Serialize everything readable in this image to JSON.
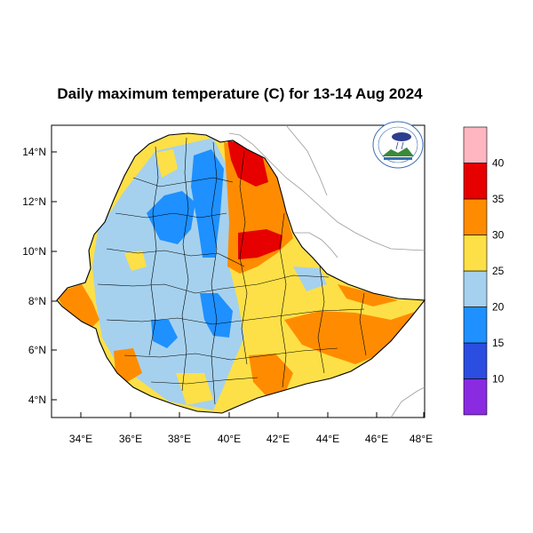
{
  "title": "Daily maximum temperature (C) for 13-14 Aug 2024",
  "axes": {
    "lat_ticks": [
      "14°N",
      "12°N",
      "10°N",
      "8°N",
      "6°N",
      "4°N"
    ],
    "lon_ticks": [
      "34°E",
      "36°E",
      "38°E",
      "40°E",
      "42°E",
      "44°E",
      "46°E",
      "48°E"
    ]
  },
  "colorbar": {
    "bins": [
      {
        "range": "<10",
        "color": "#8a2be2"
      },
      {
        "range": "10-15",
        "color": "#2b4de0"
      },
      {
        "range": "15-20",
        "color": "#1e90ff"
      },
      {
        "range": "20-25",
        "color": "#a5d1ee"
      },
      {
        "range": "25-30",
        "color": "#fde047"
      },
      {
        "range": "30-35",
        "color": "#ff8c00"
      },
      {
        "range": "35-40",
        "color": "#e60000"
      },
      {
        "range": ">40",
        "color": "#ffb6c1"
      }
    ],
    "labels": [
      "10",
      "15",
      "20",
      "25",
      "30",
      "35",
      "40"
    ]
  },
  "logo": {
    "name": "meteorology-agency-logo"
  }
}
